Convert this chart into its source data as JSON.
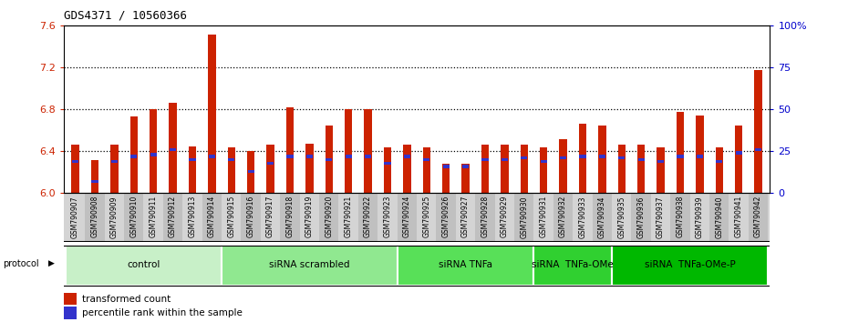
{
  "title": "GDS4371 / 10560366",
  "samples": [
    "GSM790907",
    "GSM790908",
    "GSM790909",
    "GSM790910",
    "GSM790911",
    "GSM790912",
    "GSM790913",
    "GSM790914",
    "GSM790915",
    "GSM790916",
    "GSM790917",
    "GSM790918",
    "GSM790919",
    "GSM790920",
    "GSM790921",
    "GSM790922",
    "GSM790923",
    "GSM790924",
    "GSM790925",
    "GSM790926",
    "GSM790927",
    "GSM790928",
    "GSM790929",
    "GSM790930",
    "GSM790931",
    "GSM790932",
    "GSM790933",
    "GSM790934",
    "GSM790935",
    "GSM790936",
    "GSM790937",
    "GSM790938",
    "GSM790939",
    "GSM790940",
    "GSM790941",
    "GSM790942"
  ],
  "red_values": [
    6.46,
    6.32,
    6.46,
    6.73,
    6.8,
    6.86,
    6.45,
    7.52,
    6.44,
    6.4,
    6.46,
    6.82,
    6.47,
    6.65,
    6.8,
    6.8,
    6.44,
    6.46,
    6.44,
    6.28,
    6.28,
    6.46,
    6.46,
    6.46,
    6.44,
    6.52,
    6.66,
    6.65,
    6.46,
    6.46,
    6.44,
    6.78,
    6.74,
    6.44,
    6.65,
    7.18
  ],
  "blue_values": [
    19,
    7,
    19,
    22,
    23,
    26,
    20,
    22,
    20,
    13,
    18,
    22,
    22,
    20,
    22,
    22,
    18,
    22,
    20,
    16,
    16,
    20,
    20,
    21,
    19,
    21,
    22,
    22,
    21,
    20,
    19,
    22,
    22,
    19,
    24,
    26
  ],
  "groups": [
    {
      "label": "control",
      "start": 0,
      "end": 8,
      "color": "#c8f0c8"
    },
    {
      "label": "siRNA scrambled",
      "start": 8,
      "end": 17,
      "color": "#90e890"
    },
    {
      "label": "siRNA TNFa",
      "start": 17,
      "end": 24,
      "color": "#58e058"
    },
    {
      "label": "siRNA  TNFa-OMe",
      "start": 24,
      "end": 28,
      "color": "#30d030"
    },
    {
      "label": "siRNA  TNFa-OMe-P",
      "start": 28,
      "end": 36,
      "color": "#00b800"
    }
  ],
  "ylim_left": [
    6.0,
    7.6
  ],
  "ylim_right": [
    0,
    100
  ],
  "yticks_left": [
    6.0,
    6.4,
    6.8,
    7.2,
    7.6
  ],
  "yticks_right": [
    0,
    25,
    50,
    75,
    100
  ],
  "ytick_right_labels": [
    "0",
    "25",
    "50",
    "75",
    "100%"
  ],
  "bar_color_red": "#cc2200",
  "bar_color_blue": "#3333cc",
  "bar_color_red_left": "#cc2200",
  "bar_color_blue_right": "#0000cc",
  "xtick_bg_dark": "#c0c0c0",
  "xtick_bg_light": "#d4d4d4"
}
